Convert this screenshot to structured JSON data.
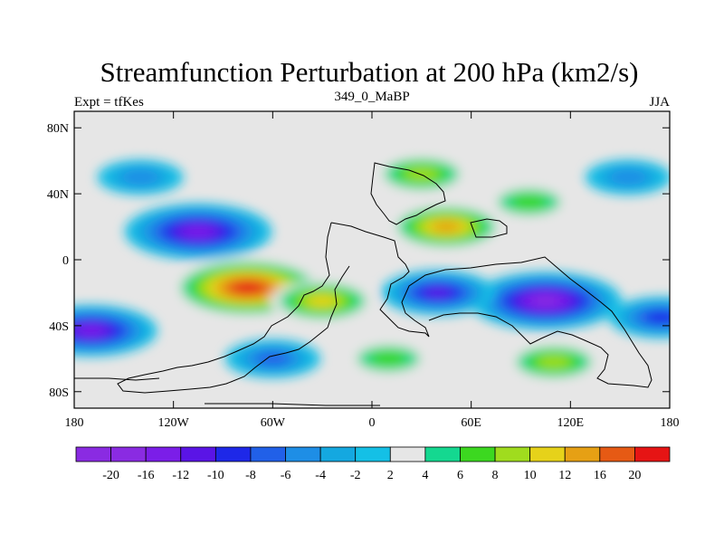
{
  "chart_data": {
    "type": "heatmap",
    "title": "Streamfunction Perturbation at 200 hPa (km2/s)",
    "left_label": "Expt = tfKes",
    "center_label": "349_0_MaBP",
    "right_label": "JJA",
    "x_ticks": [
      "180",
      "120W",
      "60W",
      "0",
      "60E",
      "120E",
      "180"
    ],
    "y_ticks": [
      "80N",
      "40N",
      "0",
      "40S",
      "80S"
    ],
    "xlim": [
      -180,
      180
    ],
    "ylim": [
      -90,
      90
    ],
    "colorbar": {
      "labels": [
        "-20",
        "-16",
        "-12",
        "-10",
        "-8",
        "-6",
        "-4",
        "-2",
        "2",
        "4",
        "6",
        "8",
        "10",
        "12",
        "16",
        "20"
      ],
      "colors": [
        "#8a2be2",
        "#7b1ee8",
        "#5a14e6",
        "#1e28e8",
        "#2160e8",
        "#1e8ee6",
        "#14a8e0",
        "#14c0e6",
        "#e6e6e6",
        "#14d890",
        "#3cd820",
        "#a0dc1e",
        "#e6d21a",
        "#e6a014",
        "#e65a14",
        "#e61414"
      ]
    },
    "fields": [
      {
        "lon": -105,
        "lat": 17,
        "value": -19
      },
      {
        "lon": -170,
        "lat": -43,
        "value": -16
      },
      {
        "lon": 105,
        "lat": -25,
        "value": -20
      },
      {
        "lon": 40,
        "lat": -20,
        "value": -12
      },
      {
        "lon": 175,
        "lat": -35,
        "value": -10
      },
      {
        "lon": -60,
        "lat": -60,
        "value": -8
      },
      {
        "lon": -140,
        "lat": 50,
        "value": -6
      },
      {
        "lon": 155,
        "lat": 50,
        "value": -6
      },
      {
        "lon": -75,
        "lat": -17,
        "value": 20
      },
      {
        "lon": -30,
        "lat": -25,
        "value": 10
      },
      {
        "lon": 45,
        "lat": 20,
        "value": 12
      },
      {
        "lon": 30,
        "lat": 52,
        "value": 8
      },
      {
        "lon": 10,
        "lat": -60,
        "value": 6
      },
      {
        "lon": 110,
        "lat": -62,
        "value": 8
      },
      {
        "lon": 95,
        "lat": 35,
        "value": 6
      }
    ]
  }
}
